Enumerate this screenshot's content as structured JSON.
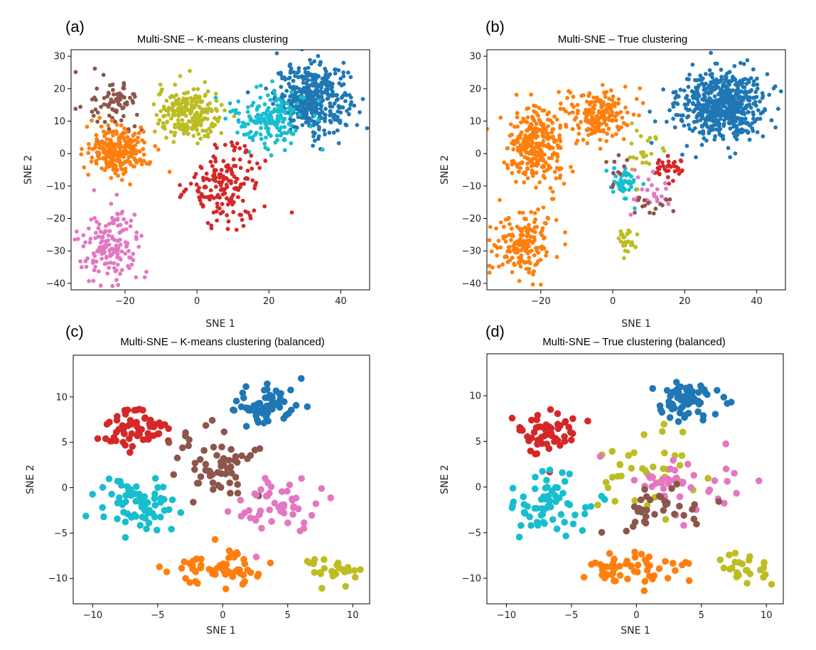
{
  "chart_data": [
    {
      "type": "scatter",
      "letter": "(a)",
      "title": "Multi-SNE – K-means clustering",
      "xlabel": "SNE 1",
      "ylabel": "SNE 2",
      "xlim": [
        -35,
        48
      ],
      "ylim": [
        -42,
        32
      ],
      "xticks": [
        {
          "value": -20,
          "label": "−20"
        },
        {
          "value": 0,
          "label": "0"
        },
        {
          "value": 20,
          "label": "20"
        },
        {
          "value": 40,
          "label": "40"
        }
      ],
      "yticks": [
        {
          "value": -40,
          "label": "−40"
        },
        {
          "value": -30,
          "label": "−30"
        },
        {
          "value": -20,
          "label": "−20"
        },
        {
          "value": -10,
          "label": "−10"
        },
        {
          "value": 0,
          "label": "0"
        },
        {
          "value": 10,
          "label": "10"
        },
        {
          "value": 20,
          "label": "20"
        },
        {
          "value": 30,
          "label": "30"
        }
      ],
      "point_size": "small",
      "series": [
        {
          "name": "cluster-blue",
          "color": "#1f77b4",
          "clusters": [
            {
              "cx": 32,
              "cy": 17,
              "sx": 6,
              "sy": 6,
              "n": 420
            }
          ]
        },
        {
          "name": "cluster-cyan",
          "color": "#17becf",
          "clusters": [
            {
              "cx": 20,
              "cy": 11,
              "sx": 6,
              "sy": 5.5,
              "n": 170
            }
          ]
        },
        {
          "name": "cluster-olive",
          "color": "#bcbd22",
          "clusters": [
            {
              "cx": -2,
              "cy": 12,
              "sx": 5.5,
              "sy": 5,
              "n": 220
            }
          ]
        },
        {
          "name": "cluster-brown",
          "color": "#8c564b",
          "clusters": [
            {
              "cx": -23,
              "cy": 15,
              "sx": 4,
              "sy": 4.5,
              "n": 80
            }
          ]
        },
        {
          "name": "cluster-orange",
          "color": "#ff7f0e",
          "clusters": [
            {
              "cx": -22,
              "cy": 1,
              "sx": 5,
              "sy": 4.5,
              "n": 240
            }
          ]
        },
        {
          "name": "cluster-red",
          "color": "#d62728",
          "clusters": [
            {
              "cx": 8,
              "cy": -10,
              "sx": 6,
              "sy": 7,
              "n": 170
            }
          ]
        },
        {
          "name": "cluster-pink",
          "color": "#e377c2",
          "clusters": [
            {
              "cx": -24,
              "cy": -28,
              "sx": 5,
              "sy": 6,
              "n": 160
            }
          ]
        }
      ]
    },
    {
      "type": "scatter",
      "letter": "(b)",
      "title": "Multi-SNE – True clustering",
      "xlabel": "SNE 1",
      "ylabel": "SNE 2",
      "xlim": [
        -35,
        48
      ],
      "ylim": [
        -42,
        32
      ],
      "xticks": [
        {
          "value": -20,
          "label": "−20"
        },
        {
          "value": 0,
          "label": "0"
        },
        {
          "value": 20,
          "label": "20"
        },
        {
          "value": 40,
          "label": "40"
        }
      ],
      "yticks": [
        {
          "value": -40,
          "label": "−40"
        },
        {
          "value": -30,
          "label": "−30"
        },
        {
          "value": -20,
          "label": "−20"
        },
        {
          "value": -10,
          "label": "−10"
        },
        {
          "value": 0,
          "label": "0"
        },
        {
          "value": 10,
          "label": "10"
        },
        {
          "value": 20,
          "label": "20"
        },
        {
          "value": 30,
          "label": "30"
        }
      ],
      "point_size": "small",
      "series": [
        {
          "name": "class-blue",
          "color": "#1f77b4",
          "clusters": [
            {
              "cx": 30,
              "cy": 15,
              "sx": 7,
              "sy": 6,
              "n": 600
            }
          ]
        },
        {
          "name": "class-orange",
          "color": "#ff7f0e",
          "clusters": [
            {
              "cx": -4,
              "cy": 12,
              "sx": 5,
              "sy": 4.5,
              "n": 180
            },
            {
              "cx": -21,
              "cy": 2,
              "sx": 5,
              "sy": 7,
              "n": 300
            },
            {
              "cx": -25,
              "cy": -28,
              "sx": 5,
              "sy": 6,
              "n": 180
            }
          ]
        },
        {
          "name": "class-cyan",
          "color": "#17becf",
          "clusters": [
            {
              "cx": 3,
              "cy": -9,
              "sx": 2.5,
              "sy": 3,
              "n": 45
            }
          ]
        },
        {
          "name": "class-olive",
          "color": "#bcbd22",
          "clusters": [
            {
              "cx": 8,
              "cy": 0,
              "sx": 3.5,
              "sy": 5,
              "n": 25
            },
            {
              "cx": 4,
              "cy": -27,
              "sx": 1.5,
              "sy": 2.5,
              "n": 25
            }
          ]
        },
        {
          "name": "class-red",
          "color": "#d62728",
          "clusters": [
            {
              "cx": 15,
              "cy": -4,
              "sx": 2.5,
              "sy": 2,
              "n": 35
            }
          ]
        },
        {
          "name": "class-pink",
          "color": "#e377c2",
          "clusters": [
            {
              "cx": 9,
              "cy": -13,
              "sx": 4,
              "sy": 4,
              "n": 30
            }
          ]
        },
        {
          "name": "class-brown",
          "color": "#8c564b",
          "clusters": [
            {
              "cx": 11,
              "cy": -16,
              "sx": 3,
              "sy": 2.5,
              "n": 15
            },
            {
              "cx": 2,
              "cy": -5,
              "sx": 2,
              "sy": 3,
              "n": 10
            }
          ]
        }
      ]
    },
    {
      "type": "scatter",
      "letter": "(c)",
      "title": "Multi-SNE – K-means clustering (balanced)",
      "xlabel": "SNE 1",
      "ylabel": "SNE 2",
      "xlim": [
        -11.5,
        11.3
      ],
      "ylim": [
        -12.8,
        14.6
      ],
      "xticks": [
        {
          "value": -10,
          "label": "−10"
        },
        {
          "value": -5,
          "label": "−5"
        },
        {
          "value": 0,
          "label": "0"
        },
        {
          "value": 5,
          "label": "5"
        },
        {
          "value": 10,
          "label": "10"
        }
      ],
      "yticks": [
        {
          "value": -10,
          "label": "−10"
        },
        {
          "value": -5,
          "label": "−5"
        },
        {
          "value": 0,
          "label": "0"
        },
        {
          "value": 5,
          "label": "5"
        },
        {
          "value": 10,
          "label": "10"
        }
      ],
      "point_size": "large",
      "series": [
        {
          "name": "cluster-blue",
          "color": "#1f77b4",
          "clusters": [
            {
              "cx": 3.5,
              "cy": 9.2,
              "sx": 1.6,
              "sy": 1.3,
              "n": 70
            }
          ]
        },
        {
          "name": "cluster-red",
          "color": "#d62728",
          "clusters": [
            {
              "cx": -6.8,
              "cy": 6.2,
              "sx": 1.4,
              "sy": 1.6,
              "n": 60
            }
          ]
        },
        {
          "name": "cluster-brown",
          "color": "#8c564b",
          "clusters": [
            {
              "cx": -0.5,
              "cy": 2.5,
              "sx": 2,
              "sy": 2.2,
              "n": 60
            }
          ]
        },
        {
          "name": "cluster-cyan",
          "color": "#17becf",
          "clusters": [
            {
              "cx": -6.5,
              "cy": -2,
              "sx": 1.8,
              "sy": 1.8,
              "n": 70
            }
          ]
        },
        {
          "name": "cluster-pink",
          "color": "#e377c2",
          "clusters": [
            {
              "cx": 4.5,
              "cy": -2,
              "sx": 2.2,
              "sy": 2,
              "n": 50
            }
          ]
        },
        {
          "name": "cluster-orange",
          "color": "#ff7f0e",
          "clusters": [
            {
              "cx": -0.5,
              "cy": -9,
              "sx": 2.2,
              "sy": 1.2,
              "n": 60
            }
          ]
        },
        {
          "name": "cluster-olive",
          "color": "#bcbd22",
          "clusters": [
            {
              "cx": 8.5,
              "cy": -9,
              "sx": 1.2,
              "sy": 1,
              "n": 25
            }
          ]
        }
      ]
    },
    {
      "type": "scatter",
      "letter": "(d)",
      "title": "Multi-SNE – True clustering (balanced)",
      "xlabel": "SNE 1",
      "ylabel": "SNE 2",
      "xlim": [
        -11.5,
        11.3
      ],
      "ylim": [
        -12.8,
        14.6
      ],
      "xticks": [
        {
          "value": -10,
          "label": "−10"
        },
        {
          "value": -5,
          "label": "−5"
        },
        {
          "value": 0,
          "label": "0"
        },
        {
          "value": 5,
          "label": "5"
        },
        {
          "value": 10,
          "label": "10"
        }
      ],
      "yticks": [
        {
          "value": -10,
          "label": "−10"
        },
        {
          "value": -5,
          "label": "−5"
        },
        {
          "value": 0,
          "label": "0"
        },
        {
          "value": 5,
          "label": "5"
        },
        {
          "value": 10,
          "label": "10"
        }
      ],
      "point_size": "large",
      "series": [
        {
          "name": "class-blue",
          "color": "#1f77b4",
          "clusters": [
            {
              "cx": 3.5,
              "cy": 9.2,
              "sx": 1.6,
              "sy": 1.3,
              "n": 70
            }
          ]
        },
        {
          "name": "class-red",
          "color": "#d62728",
          "clusters": [
            {
              "cx": -6.8,
              "cy": 6.2,
              "sx": 1.4,
              "sy": 1.6,
              "n": 55
            }
          ]
        },
        {
          "name": "class-cyan",
          "color": "#17becf",
          "clusters": [
            {
              "cx": -6.5,
              "cy": -2,
              "sx": 1.8,
              "sy": 1.8,
              "n": 65
            }
          ]
        },
        {
          "name": "class-orange",
          "color": "#ff7f0e",
          "clusters": [
            {
              "cx": -0.5,
              "cy": -9,
              "sx": 2.2,
              "sy": 1.2,
              "n": 55
            }
          ]
        },
        {
          "name": "class-olive",
          "color": "#bcbd22",
          "clusters": [
            {
              "cx": 1,
              "cy": 2,
              "sx": 2.5,
              "sy": 3,
              "n": 40
            },
            {
              "cx": 8.5,
              "cy": -9,
              "sx": 1.2,
              "sy": 1,
              "n": 25
            }
          ]
        },
        {
          "name": "class-pink",
          "color": "#e377c2",
          "clusters": [
            {
              "cx": 3.5,
              "cy": 0,
              "sx": 3,
              "sy": 2.5,
              "n": 40
            }
          ]
        },
        {
          "name": "class-brown",
          "color": "#8c564b",
          "clusters": [
            {
              "cx": 2,
              "cy": -2.5,
              "sx": 2.5,
              "sy": 1.5,
              "n": 35
            }
          ]
        }
      ]
    }
  ]
}
